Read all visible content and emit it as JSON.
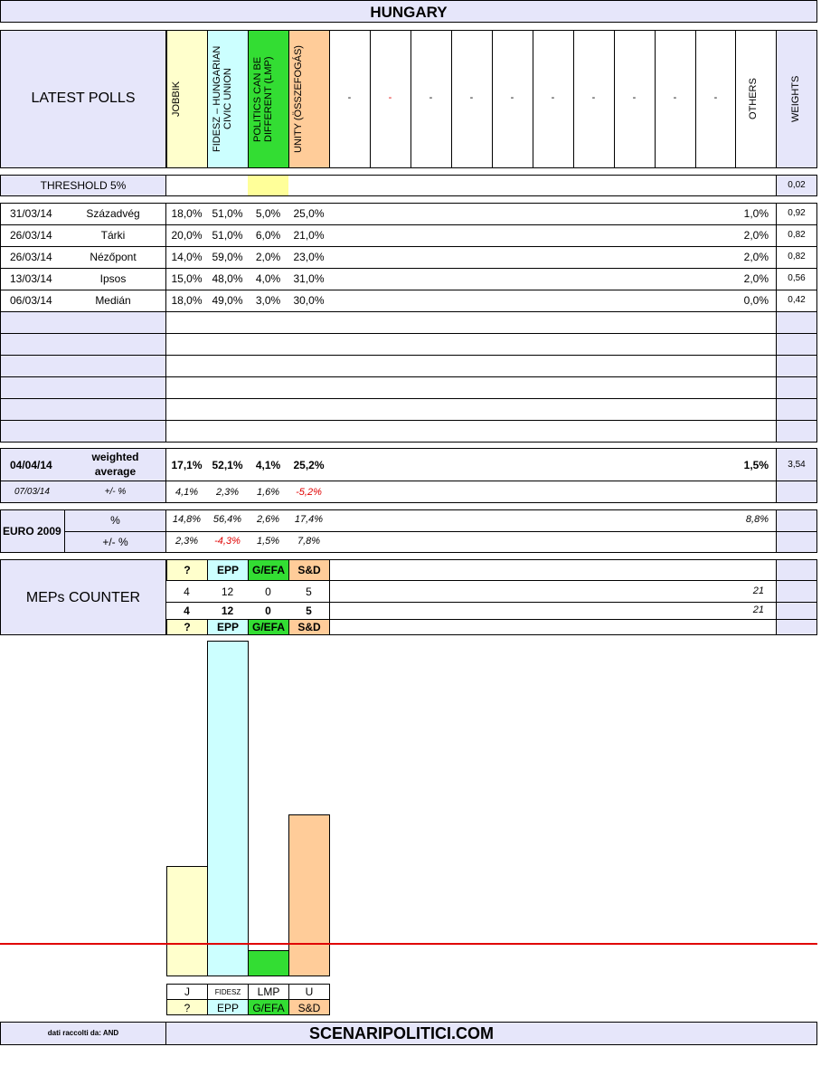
{
  "title": "HUNGARY",
  "header": {
    "latest_polls": "LATEST POLLS",
    "parties": [
      {
        "label": "JOBBIK",
        "color": "#ffffcc"
      },
      {
        "label": "FIDESZ – HUNGARIAN CIVIC UNION",
        "color": "#ccffff"
      },
      {
        "label": "POLITICS CAN BE DIFFERENT (LMP)",
        "color": "#33dd33"
      },
      {
        "label": "UNITY (ÖSSZEFOGÁS)",
        "color": "#ffcc99"
      }
    ],
    "dashes": [
      "-",
      "-",
      "-",
      "-",
      "-",
      "-",
      "-",
      "-",
      "-",
      "-"
    ],
    "others": "OTHERS",
    "weights": "WEIGHTS"
  },
  "threshold": {
    "label": "THRESHOLD 5%",
    "weight": "0,02"
  },
  "polls": [
    {
      "date": "31/03/14",
      "institute": "Századvég",
      "values": [
        "18,0%",
        "51,0%",
        "5,0%",
        "25,0%"
      ],
      "others": "1,0%",
      "weight": "0,92"
    },
    {
      "date": "26/03/14",
      "institute": "Tárki",
      "values": [
        "20,0%",
        "51,0%",
        "6,0%",
        "21,0%"
      ],
      "others": "2,0%",
      "weight": "0,82"
    },
    {
      "date": "26/03/14",
      "institute": "Nézőpont",
      "values": [
        "14,0%",
        "59,0%",
        "2,0%",
        "23,0%"
      ],
      "others": "2,0%",
      "weight": "0,82"
    },
    {
      "date": "13/03/14",
      "institute": "Ipsos",
      "values": [
        "15,0%",
        "48,0%",
        "4,0%",
        "31,0%"
      ],
      "others": "2,0%",
      "weight": "0,56"
    },
    {
      "date": "06/03/14",
      "institute": "Medián",
      "values": [
        "18,0%",
        "49,0%",
        "3,0%",
        "30,0%"
      ],
      "others": "0,0%",
      "weight": "0,42"
    }
  ],
  "weighted": {
    "date": "04/04/14",
    "label_line1": "weighted",
    "label_line2": "average",
    "values": [
      "17,1%",
      "52,1%",
      "4,1%",
      "25,2%"
    ],
    "others": "1,5%",
    "weight": "3,54",
    "prev_date": "07/03/14",
    "diff_label": "+/- %",
    "diffs": [
      {
        "text": "4,1%",
        "neg": false
      },
      {
        "text": "2,3%",
        "neg": false
      },
      {
        "text": "1,6%",
        "neg": false
      },
      {
        "text": "-5,2%",
        "neg": true
      }
    ]
  },
  "euro2009": {
    "label": "EURO 2009",
    "pct_label": "%",
    "values": [
      "14,8%",
      "56,4%",
      "2,6%",
      "17,4%"
    ],
    "others": "8,8%",
    "diff_label": "+/- %",
    "diffs": [
      {
        "text": "2,3%",
        "neg": false
      },
      {
        "text": "-4,3%",
        "neg": true
      },
      {
        "text": "1,5%",
        "neg": false
      },
      {
        "text": "7,8%",
        "neg": false
      }
    ]
  },
  "meps": {
    "label": "MEPs COUNTER",
    "groups": [
      "?",
      "EPP",
      "G/EFA",
      "S&D"
    ],
    "row1": [
      "4",
      "12",
      "0",
      "5"
    ],
    "row1_total": "21",
    "row2": [
      "4",
      "12",
      "0",
      "5"
    ],
    "row2_total": "21",
    "groups_bottom": [
      "?",
      "EPP",
      "G/EFA",
      "S&D"
    ]
  },
  "chart_data": {
    "type": "bar",
    "categories": [
      "J",
      "FIDESZ",
      "LMP",
      "U"
    ],
    "groups": [
      "?",
      "EPP",
      "G/EFA",
      "S&D"
    ],
    "values": [
      17.1,
      52.1,
      4.1,
      25.2
    ],
    "colors": [
      "#ffffcc",
      "#ccffff",
      "#33dd33",
      "#ffcc99"
    ],
    "threshold": 5,
    "threshold_color": "#e00000",
    "ylim": [
      0,
      52.1
    ]
  },
  "footer": {
    "source": "dati raccolti da: AND",
    "site": "SCENARIPOLITICI.COM"
  }
}
